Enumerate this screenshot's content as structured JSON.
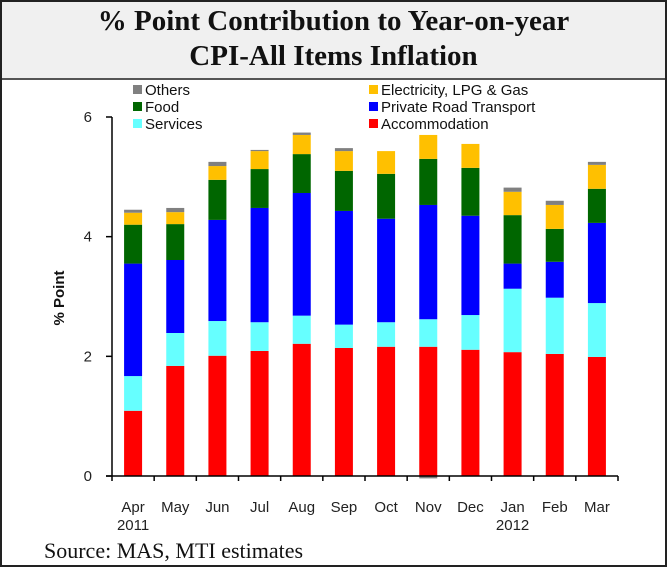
{
  "chart_data": {
    "type": "bar",
    "stacked": true,
    "title": "% Point Contribution to Year-on-year CPI-All Items Inflation",
    "title_lines": [
      "% Point Contribution to Year-on-year",
      "CPI-All Items Inflation"
    ],
    "xlabel": "",
    "ylabel": "% Point",
    "ylim": [
      0,
      6
    ],
    "yticks": [
      0,
      2,
      4,
      6
    ],
    "grid": false,
    "legend_position": "top",
    "categories": [
      "Apr",
      "May",
      "Jun",
      "Jul",
      "Aug",
      "Sep",
      "Oct",
      "Nov",
      "Dec",
      "Jan",
      "Feb",
      "Mar"
    ],
    "year_labels": [
      {
        "index": 0,
        "label": "2011"
      },
      {
        "index": 9,
        "label": "2012"
      }
    ],
    "series": [
      {
        "name": "Accommodation",
        "color": "#ff0000",
        "values": [
          1.09,
          1.84,
          2.01,
          2.09,
          2.21,
          2.14,
          2.16,
          2.16,
          2.11,
          2.07,
          2.04,
          1.99
        ]
      },
      {
        "name": "Services",
        "color": "#66ffff",
        "values": [
          0.58,
          0.55,
          0.58,
          0.48,
          0.47,
          0.39,
          0.41,
          0.46,
          0.58,
          1.06,
          0.94,
          0.9
        ]
      },
      {
        "name": "Private Road Transport",
        "color": "#0000ff",
        "values": [
          1.88,
          1.22,
          1.69,
          1.91,
          2.05,
          1.9,
          1.73,
          1.91,
          1.66,
          0.42,
          0.6,
          1.34
        ]
      },
      {
        "name": "Food",
        "color": "#006600",
        "values": [
          0.65,
          0.6,
          0.67,
          0.65,
          0.65,
          0.67,
          0.75,
          0.77,
          0.8,
          0.81,
          0.55,
          0.57
        ]
      },
      {
        "name": "Electricity, LPG & Gas",
        "color": "#ffc000",
        "values": [
          0.2,
          0.2,
          0.23,
          0.3,
          0.32,
          0.33,
          0.38,
          0.4,
          0.4,
          0.39,
          0.4,
          0.4
        ]
      },
      {
        "name": "Others",
        "color": "#808080",
        "values": [
          0.05,
          0.07,
          0.07,
          0.02,
          0.04,
          0.05,
          0.0,
          -0.04,
          0.0,
          0.07,
          0.07,
          0.05
        ]
      }
    ],
    "legend": [
      {
        "name": "Others",
        "color": "#808080"
      },
      {
        "name": "Electricity, LPG & Gas",
        "color": "#ffc000"
      },
      {
        "name": "Food",
        "color": "#006600"
      },
      {
        "name": "Private Road Transport",
        "color": "#0000ff"
      },
      {
        "name": "Services",
        "color": "#66ffff"
      },
      {
        "name": "Accommodation",
        "color": "#ff0000"
      }
    ]
  },
  "source": "Source: MAS, MTI estimates"
}
